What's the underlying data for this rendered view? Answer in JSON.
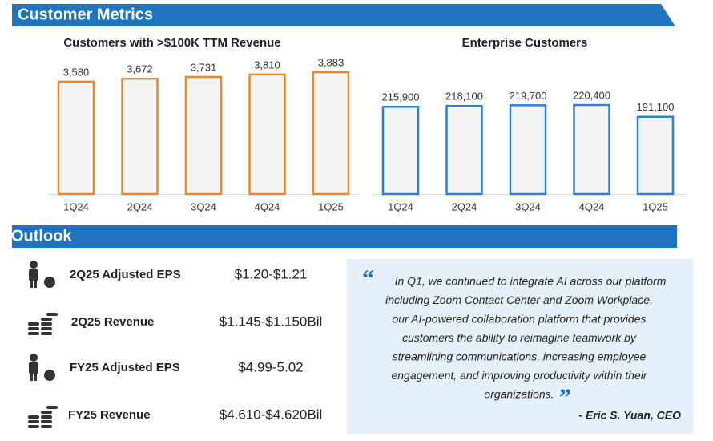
{
  "header": {
    "metrics_title": "Customer Metrics",
    "outlook_title": "Outlook"
  },
  "chart_data": [
    {
      "type": "bar",
      "title": "Customers with >$100K TTM Revenue",
      "categories": [
        "1Q24",
        "2Q24",
        "3Q24",
        "4Q24",
        "1Q25"
      ],
      "values": [
        3580,
        3672,
        3731,
        3810,
        3883
      ],
      "value_labels": [
        "3,580",
        "3,672",
        "3,731",
        "3,810",
        "3,883"
      ],
      "color": "#e8882a"
    },
    {
      "type": "bar",
      "title": "Enterprise Customers",
      "categories": [
        "1Q24",
        "2Q24",
        "3Q24",
        "4Q24",
        "1Q25"
      ],
      "values": [
        215900,
        218100,
        219700,
        220400,
        191100
      ],
      "value_labels": [
        "215,900",
        "218,100",
        "219,700",
        "220,400",
        "191,100"
      ],
      "color": "#2f80d1"
    }
  ],
  "outlook": [
    {
      "label": "2Q25 Adjusted EPS",
      "value": "$1.20-$1.21"
    },
    {
      "label": "2Q25 Revenue",
      "value": "$1.145-$1.150Bil"
    },
    {
      "label": "FY25 Adjusted EPS",
      "value": "$4.99-5.02"
    },
    {
      "label": "FY25 Revenue",
      "value": "$4.610-$4.620Bil"
    }
  ],
  "quote": {
    "open_mark": "“",
    "close_mark": "”",
    "lines": [
      "In Q1, we continued to integrate AI across our platform",
      "including Zoom Contact Center and Zoom Workplace,",
      "our AI-powered collaboration platform that provides",
      "customers the ability to reimagine teamwork by",
      "streamlining communications, increasing employee",
      "engagement, and improving productivity within their",
      "organizations."
    ],
    "attribution": "- Eric S. Yuan, CEO"
  }
}
